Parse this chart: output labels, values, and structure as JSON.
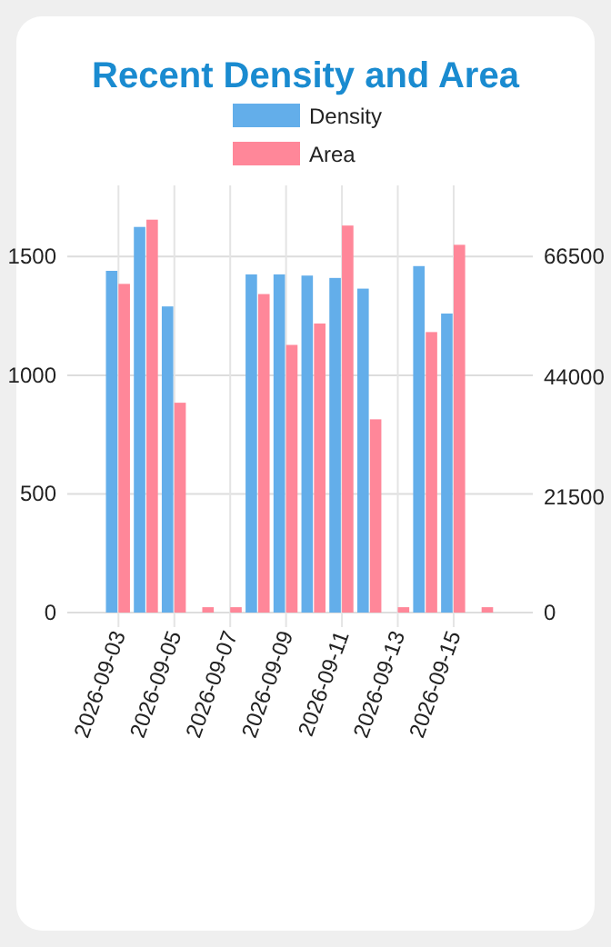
{
  "chart_data": {
    "type": "bar",
    "title": "Recent Density and Area",
    "x": [
      "2026-09-03",
      "2026-09-04",
      "2026-09-05",
      "2026-09-06",
      "2026-09-07",
      "2026-09-08",
      "2026-09-09",
      "2026-09-10",
      "2026-09-11",
      "2026-09-12",
      "2026-09-13",
      "2026-09-14",
      "2026-09-15",
      "2026-09-16"
    ],
    "xlim": [
      "2026-09-01T04:00",
      "2026-09-17T20:00"
    ],
    "xticks": [
      "2026-09-03",
      "2026-09-05",
      "2026-09-07",
      "2026-09-09",
      "2026-09-11",
      "2026-09-13",
      "2026-09-15"
    ],
    "series": [
      {
        "name": "Density",
        "color": "#63aeea",
        "values": [
          1440,
          1625,
          1290,
          null,
          null,
          1425,
          1425,
          1420,
          1410,
          1365,
          null,
          1460,
          1260,
          null
        ]
      },
      {
        "name": "Area",
        "color": "#ff8799",
        "axis": "y2",
        "values": [
          61400,
          73400,
          39200,
          1000,
          1000,
          59500,
          50000,
          54000,
          72300,
          36100,
          1000,
          52400,
          68700,
          1000
        ]
      }
    ],
    "ylim": [
      0,
      1800
    ],
    "yticks": [
      0,
      500,
      1000,
      1500
    ],
    "y2lim": [
      0,
      79800
    ],
    "y2ticks": [
      0,
      21500,
      44000,
      66500
    ],
    "grid": true,
    "legend": "top"
  }
}
